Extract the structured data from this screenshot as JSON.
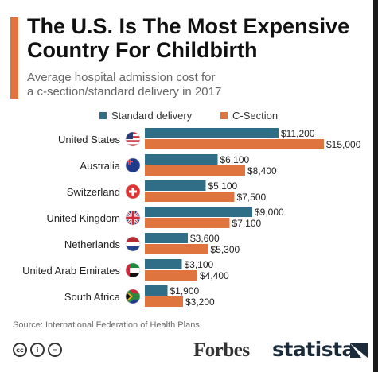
{
  "title_line1": "The U.S. Is The Most Expensive",
  "title_line2": "Country For Childbirth",
  "subtitle_line1": "Average hospital admission cost for",
  "subtitle_line2": "a c-section/standard delivery in 2017",
  "colors": {
    "standard": "#2f6e86",
    "csection": "#e0743f",
    "accent": "#e0743f"
  },
  "chart_data": {
    "type": "bar",
    "orientation": "horizontal",
    "categories": [
      "United States",
      "Australia",
      "Switzerland",
      "United Kingdom",
      "Netherlands",
      "United Arab Emirates",
      "South Africa"
    ],
    "series": [
      {
        "name": "Standard delivery",
        "values": [
          11200,
          6100,
          5100,
          9000,
          3600,
          3100,
          1900
        ],
        "labels": [
          "$11,200",
          "$6,100",
          "$5,100",
          "$9,000",
          "$3,600",
          "$3,100",
          "$1,900"
        ]
      },
      {
        "name": "C-Section",
        "values": [
          15000,
          8400,
          7500,
          7100,
          5300,
          4400,
          3200
        ],
        "labels": [
          "$15,000",
          "$8,400",
          "$7,500",
          "$7,100",
          "$5,300",
          "$4,400",
          "$3,200"
        ]
      }
    ],
    "legend_position": "top",
    "grid": false
  },
  "flags": [
    "us-flag-icon",
    "australia-flag-icon",
    "switzerland-flag-icon",
    "uk-flag-icon",
    "netherlands-flag-icon",
    "uae-flag-icon",
    "south-africa-flag-icon"
  ],
  "source": "Source: International Federation of Health Plans",
  "cc_icons": [
    "cc",
    "i",
    "="
  ],
  "brand_forbes": "Forbes",
  "brand_statista": "statista"
}
